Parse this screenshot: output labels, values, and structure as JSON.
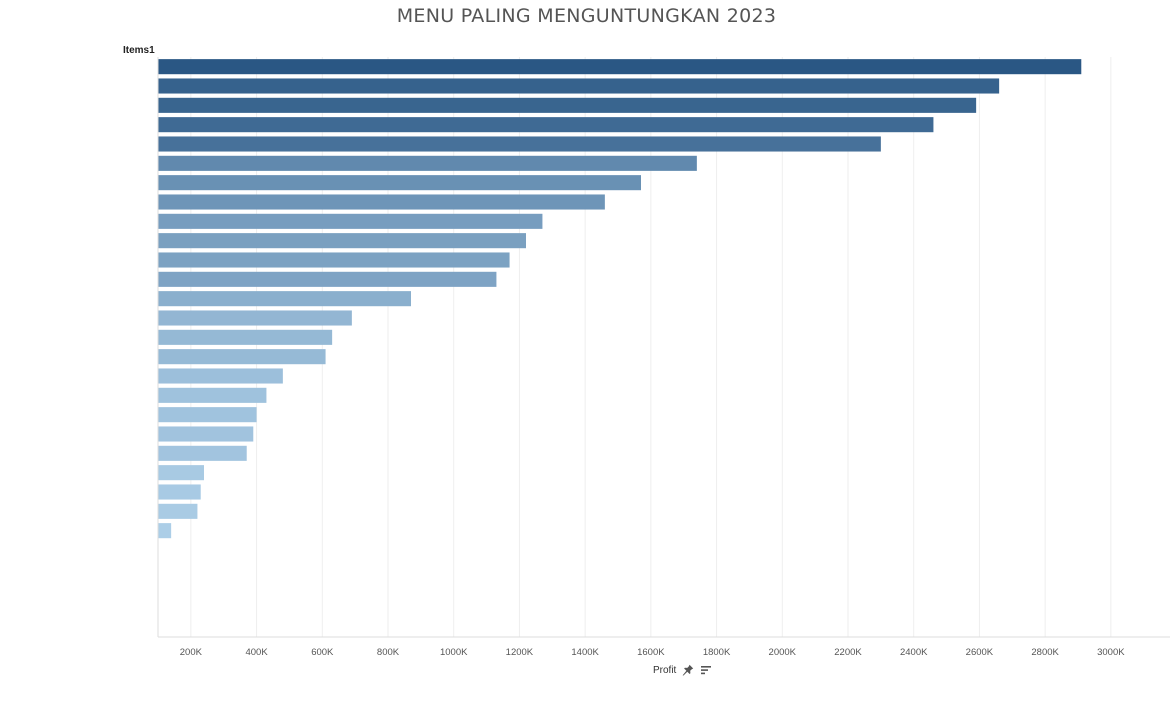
{
  "title": "MENU PALING MENGUNTUNGKAN 2023",
  "row_header": "Items1",
  "x_axis_title": "Profit",
  "icons": {
    "pin": "pin-icon",
    "sort": "sort-descending-icon"
  },
  "colors": {
    "bar_dark": "#2a5784",
    "bar_light": "#b3d4ec",
    "grid": "#eeeeee"
  },
  "chart_data": {
    "type": "bar",
    "orientation": "horizontal",
    "xlabel": "Profit",
    "ylabel": "Items1",
    "xlim": [
      100000,
      3180000
    ],
    "x_ticks": [
      "200K",
      "400K",
      "600K",
      "800K",
      "1000K",
      "1200K",
      "1400K",
      "1600K",
      "1800K",
      "2000K",
      "2200K",
      "2400K",
      "2600K",
      "2800K",
      "3000K"
    ],
    "grid": true,
    "categories": [
      "",
      "",
      "",
      "",
      "",
      "",
      "",
      "",
      "",
      "",
      "",
      "",
      "",
      "",
      "",
      "",
      "",
      "",
      "",
      "",
      "",
      "",
      "",
      "",
      "",
      "",
      "",
      "",
      "",
      ""
    ],
    "values": [
      2910000,
      2660000,
      2590000,
      2460000,
      2300000,
      1740000,
      1570000,
      1460000,
      1270000,
      1220000,
      1170000,
      1130000,
      870000,
      690000,
      630000,
      610000,
      480000,
      430000,
      400000,
      390000,
      370000,
      240000,
      230000,
      220000,
      140000,
      0,
      0,
      0,
      0,
      0
    ]
  }
}
